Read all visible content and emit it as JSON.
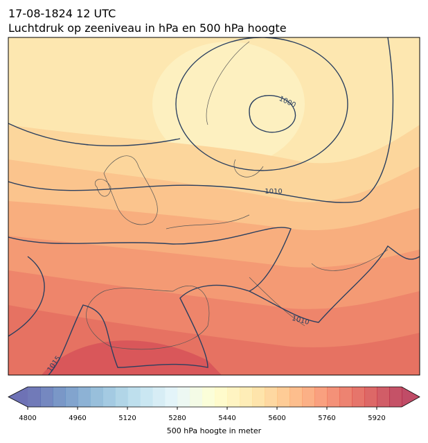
{
  "title": "17-08-1824 12 UTC",
  "subtitle": "Luchtdruk op zeeniveau in hPa en 500 hPa hoogte",
  "contour_labels": [
    "1000",
    "1010",
    "1010",
    "1015"
  ],
  "colorbar": {
    "label": "500 hPa hoogte in meter",
    "lim": [
      4800,
      6000
    ],
    "ticks": [
      4800,
      4960,
      5120,
      5280,
      5440,
      5600,
      5760,
      5920
    ]
  }
}
